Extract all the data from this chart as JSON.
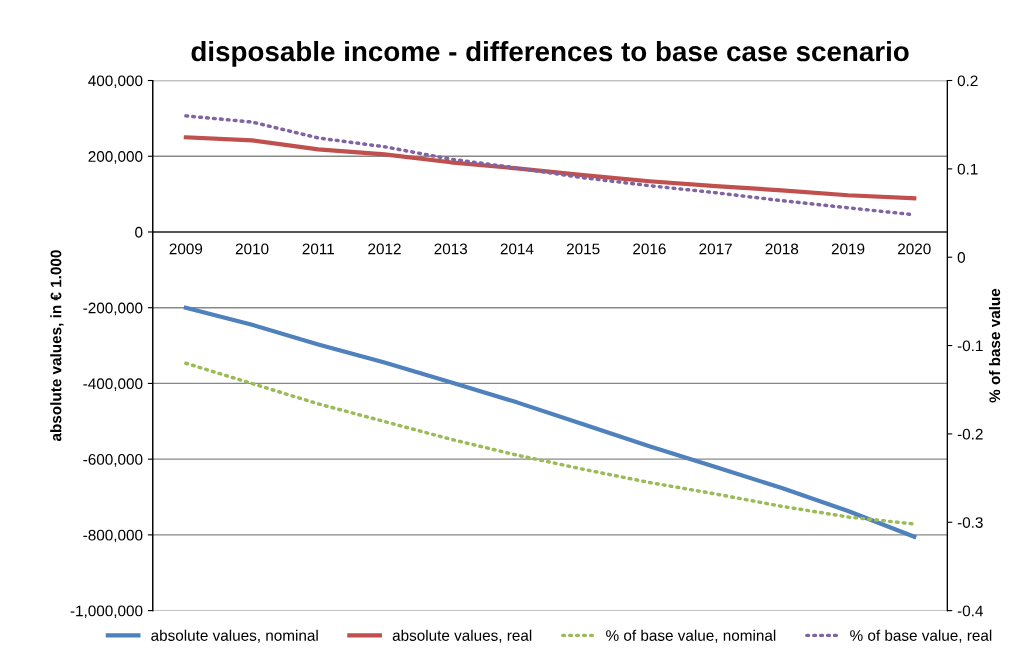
{
  "chart_data": {
    "type": "line",
    "title": "disposable income - differences to base case scenario",
    "ylabel": "absolute values, in € 1.000",
    "y2label": "% of base value",
    "categories": [
      "2009",
      "2010",
      "2011",
      "2012",
      "2013",
      "2014",
      "2015",
      "2016",
      "2017",
      "2018",
      "2019",
      "2020"
    ],
    "series": [
      {
        "name": "absolute values, nominal",
        "color": "#4f81bd",
        "line_style": "solid",
        "values": [
          -200000,
          -245000,
          -297000,
          -345000,
          -397000,
          -450000,
          -508000,
          -566000,
          -621000,
          -676000,
          -737000,
          -805000
        ]
      },
      {
        "name": "absolute values, real",
        "color": "#c0504d",
        "line_style": "solid",
        "values": [
          250000,
          242000,
          218000,
          205000,
          184000,
          168000,
          150000,
          134000,
          121000,
          110000,
          97000,
          89000
        ]
      },
      {
        "name": "% of base value, nominal",
        "color": "#9bbb59",
        "line_style": "dotted",
        "axis": "y2",
        "values": [
          -0.12,
          -0.143,
          -0.166,
          -0.186,
          -0.206,
          -0.224,
          -0.24,
          -0.255,
          -0.268,
          -0.282,
          -0.294,
          -0.302
        ]
      },
      {
        "name": "% of base value, real",
        "color": "#8064a2",
        "line_style": "dotted",
        "axis": "y2",
        "values": [
          0.16,
          0.153,
          0.135,
          0.125,
          0.111,
          0.101,
          0.09,
          0.081,
          0.073,
          0.064,
          0.056,
          0.048
        ]
      }
    ],
    "ylim": [
      -1000000,
      400000
    ],
    "yticks": [
      {
        "value": -1000000,
        "label": "-1,000,000"
      },
      {
        "value": -800000,
        "label": "-800,000"
      },
      {
        "value": -600000,
        "label": "-600,000"
      },
      {
        "value": -400000,
        "label": "-400,000"
      },
      {
        "value": -200000,
        "label": "-200,000"
      },
      0,
      {
        "value": 200000,
        "label": "200,000"
      },
      {
        "value": 400000,
        "label": "400,000"
      }
    ],
    "y2lim": [
      -0.4,
      0.2
    ],
    "y2ticks": [
      {
        "value": -0.4,
        "label": "-0.4"
      },
      {
        "value": -0.3,
        "label": "-0.3"
      },
      {
        "value": -0.2,
        "label": "-0.2"
      },
      {
        "value": -0.1,
        "label": "-0.1"
      },
      0,
      0.1,
      0.2
    ],
    "grid": "y",
    "legend": "bottom",
    "marker": "none"
  }
}
